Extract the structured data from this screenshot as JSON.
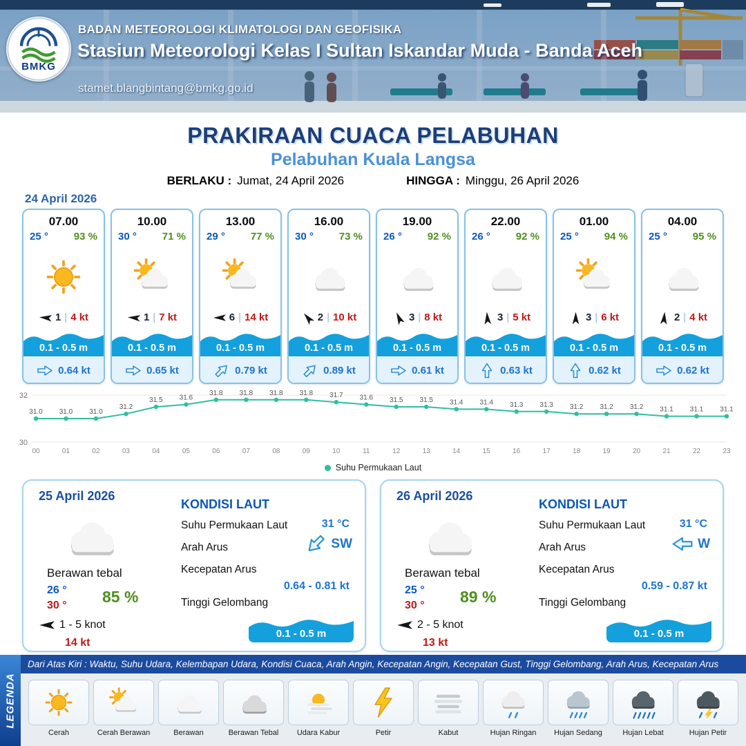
{
  "header": {
    "agency": "BADAN METEOROLOGI KLIMATOLOGI DAN GEOFISIKA",
    "station": "Stasiun Meteorologi Kelas I Sultan Iskandar Muda - Banda Aceh",
    "email": "stamet.blangbintang@bmkg.go.id",
    "logo_label": "BMKG"
  },
  "title": {
    "main": "PRAKIRAAN CUACA PELABUHAN",
    "subtitle": "Pelabuhan Kuala Langsa",
    "valid_label": "BERLAKU :",
    "valid_value": "Jumat, 24 April 2026",
    "until_label": "HINGGA :",
    "until_value": "Minggu, 26 April 2026"
  },
  "forecast": {
    "date": "24 April 2026",
    "cards": [
      {
        "time": "07.00",
        "temp": "25 °",
        "rh": "93 %",
        "icon": "sun",
        "wind_dir_deg": 185,
        "wind": "1",
        "gust": "4 kt",
        "wave": "0.1 - 0.5 m",
        "current_dir_deg": 0,
        "current": "0.64 kt"
      },
      {
        "time": "10.00",
        "temp": "30 °",
        "rh": "71 %",
        "icon": "sun-cloud",
        "wind_dir_deg": 185,
        "wind": "1",
        "gust": "7 kt",
        "wave": "0.1 - 0.5 m",
        "current_dir_deg": 0,
        "current": "0.65 kt"
      },
      {
        "time": "13.00",
        "temp": "29 °",
        "rh": "77 %",
        "icon": "sun-cloud",
        "wind_dir_deg": 180,
        "wind": "6",
        "gust": "14 kt",
        "wave": "0.1 - 0.5 m",
        "current_dir_deg": -45,
        "current": "0.79 kt"
      },
      {
        "time": "16.00",
        "temp": "30 °",
        "rh": "73 %",
        "icon": "cloud",
        "wind_dir_deg": 230,
        "wind": "2",
        "gust": "10 kt",
        "wave": "0.1 - 0.5 m",
        "current_dir_deg": -45,
        "current": "0.89 kt"
      },
      {
        "time": "19.00",
        "temp": "26 °",
        "rh": "92 %",
        "icon": "cloud",
        "wind_dir_deg": 245,
        "wind": "3",
        "gust": "8 kt",
        "wave": "0.1 - 0.5 m",
        "current_dir_deg": 0,
        "current": "0.61 kt"
      },
      {
        "time": "22.00",
        "temp": "26 °",
        "rh": "92 %",
        "icon": "cloud",
        "wind_dir_deg": 265,
        "wind": "3",
        "gust": "5 kt",
        "wave": "0.1 - 0.5 m",
        "current_dir_deg": -90,
        "current": "0.63 kt"
      },
      {
        "time": "01.00",
        "temp": "25 °",
        "rh": "94 %",
        "icon": "sun-cloud",
        "wind_dir_deg": 270,
        "wind": "3",
        "gust": "6 kt",
        "wave": "0.1 - 0.5 m",
        "current_dir_deg": -90,
        "current": "0.62 kt"
      },
      {
        "time": "04.00",
        "temp": "25 °",
        "rh": "95 %",
        "icon": "cloud",
        "wind_dir_deg": 275,
        "wind": "2",
        "gust": "4 kt",
        "wave": "0.1 - 0.5 m",
        "current_dir_deg": 0,
        "current": "0.62 kt"
      }
    ]
  },
  "chart_data": {
    "type": "line",
    "legend": "Suhu Permukaan Laut",
    "x": [
      "00",
      "01",
      "02",
      "03",
      "04",
      "05",
      "06",
      "07",
      "08",
      "09",
      "10",
      "11",
      "12",
      "13",
      "14",
      "15",
      "16",
      "17",
      "18",
      "19",
      "20",
      "21",
      "22",
      "23"
    ],
    "values": [
      31.0,
      31.0,
      31.0,
      31.2,
      31.5,
      31.6,
      31.8,
      31.8,
      31.8,
      31.8,
      31.7,
      31.6,
      31.5,
      31.5,
      31.4,
      31.4,
      31.3,
      31.3,
      31.2,
      31.2,
      31.2,
      31.1,
      31.1,
      31.1
    ],
    "ylabel": "",
    "ylim": [
      30,
      32
    ],
    "line_color": "#2fbfa0",
    "grid": true,
    "legend_position": "bottom"
  },
  "days": [
    {
      "date": "25 April 2026",
      "icon": "cloud",
      "condition": "Berawan tebal",
      "temp_min": "26 °",
      "temp_max": "30 °",
      "rh": "85 %",
      "wind_dir_deg": 180,
      "wind_range": "1 - 5 knot",
      "gust": "14 kt",
      "sea": {
        "title": "KONDISI LAUT",
        "sst_label": "Suhu Permukaan Laut",
        "sst": "31 °C",
        "current_dir_label": "Arah Arus",
        "current_dir": "SW",
        "current_dir_deg": 135,
        "current_speed_label": "Kecepatan Arus",
        "current_speed": "0.64  - 0.81 kt",
        "wave_label": "Tinggi Gelombang",
        "wave": "0.1 - 0.5 m"
      }
    },
    {
      "date": "26 April 2026",
      "icon": "cloud",
      "condition": "Berawan tebal",
      "temp_min": "25 °",
      "temp_max": "30 °",
      "rh": "89 %",
      "wind_dir_deg": 180,
      "wind_range": "2 - 5 knot",
      "gust": "13 kt",
      "sea": {
        "title": "KONDISI LAUT",
        "sst_label": "Suhu Permukaan Laut",
        "sst": "31 °C",
        "current_dir_label": "Arah Arus",
        "current_dir": "W",
        "current_dir_deg": 180,
        "current_speed_label": "Kecepatan Arus",
        "current_speed": "0.59  - 0.87 kt",
        "wave_label": "Tinggi Gelombang",
        "wave": "0.1 - 0.5 m"
      }
    }
  ],
  "legend": {
    "title": "LEGENDA",
    "description": "Dari Atas Kiri : Waktu, Suhu Udara, Kelembapan Udara, Kondisi Cuaca, Arah Angin, Kecepatan Angin, Kecepatan Gust, Tinggi Gelombang, Arah Arus, Kecepatan Arus",
    "items": [
      {
        "icon": "sun",
        "label": "Cerah"
      },
      {
        "icon": "sun-cloud",
        "label": "Cerah Berawan"
      },
      {
        "icon": "cloud",
        "label": "Berawan"
      },
      {
        "icon": "cloud-thick",
        "label": "Berawan Tebal"
      },
      {
        "icon": "haze",
        "label": "Udara Kabur"
      },
      {
        "icon": "lightning",
        "label": "Petir"
      },
      {
        "icon": "fog",
        "label": "Kabut"
      },
      {
        "icon": "rain-light",
        "label": "Hujan Ringan"
      },
      {
        "icon": "rain-medium",
        "label": "Hujan Sedang"
      },
      {
        "icon": "rain-heavy",
        "label": "Hujan Lebat"
      },
      {
        "icon": "rain-thunder",
        "label": "Hujan Petir"
      }
    ]
  },
  "colors": {
    "accent_blue": "#1c3e78",
    "subtitle_blue": "#4a90d8",
    "temp_blue": "#0a58c0",
    "humidity_green": "#4e8f1e",
    "gust_red": "#c01818",
    "wave_blue": "#14a0dc",
    "sst_line_teal": "#2fbfa0"
  }
}
